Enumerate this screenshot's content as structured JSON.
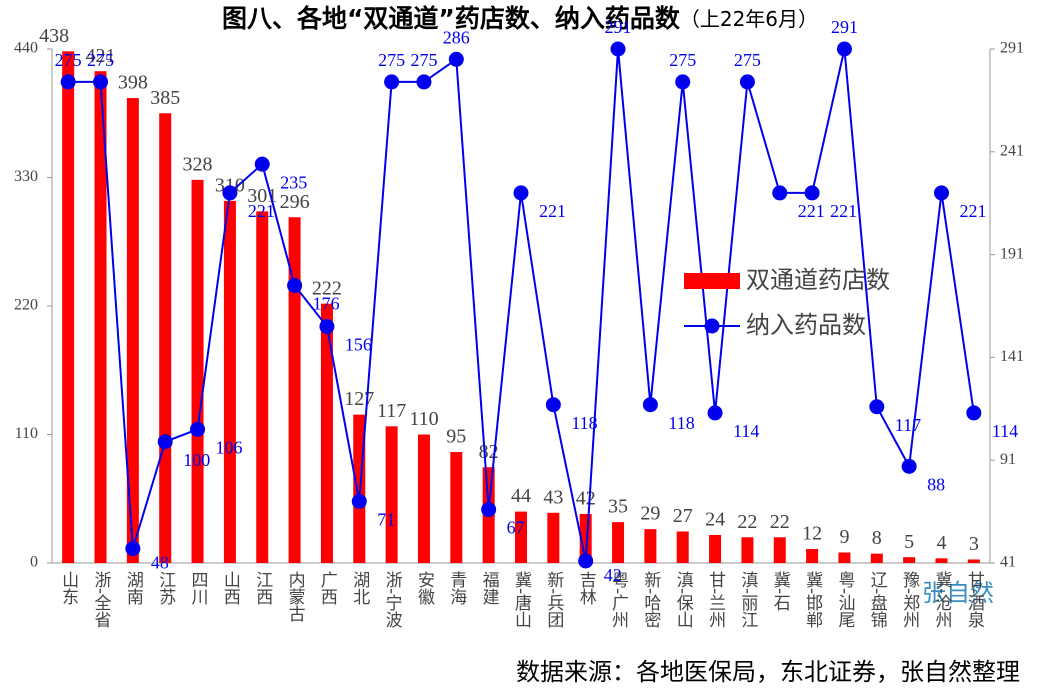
{
  "chart_data": {
    "type": "bar_line",
    "title": "图八、各地“双通道”药店数、纳入药品数",
    "title_note": "（上22年6月）",
    "source": "数据来源：各地医保局，东北证券，张自然整理",
    "watermark": "张自然",
    "categories": [
      "山东",
      "浙-全省",
      "湖南",
      "江苏",
      "四川",
      "山西",
      "江西",
      "内蒙古",
      "广西",
      "湖北",
      "浙-宁波",
      "安徽",
      "青海",
      "福建",
      "冀-唐山",
      "新-兵团",
      "吉林",
      "粤-广州",
      "新-哈密",
      "滇-保山",
      "甘-兰州",
      "滇-丽江",
      "冀-石",
      "冀-邯郸",
      "粤-汕尾",
      "辽-盘锦",
      "豫-郑州",
      "冀-沧州",
      "甘-酒泉"
    ],
    "series": [
      {
        "name": "双通道药店数",
        "type": "bar",
        "color": "#ff0000",
        "values": [
          438,
          421,
          398,
          385,
          328,
          310,
          301,
          296,
          222,
          127,
          117,
          110,
          95,
          82,
          44,
          43,
          42,
          35,
          29,
          27,
          24,
          22,
          22,
          12,
          9,
          8,
          5,
          4,
          3
        ]
      },
      {
        "name": "纳入药品数",
        "type": "line",
        "axis": "y2",
        "color": "#0000ee",
        "values": [
          275,
          275,
          48,
          100,
          106,
          221,
          235,
          176,
          156,
          71,
          275,
          275,
          286,
          67,
          221,
          118,
          42,
          291,
          118,
          275,
          114,
          275,
          221,
          221,
          291,
          117,
          88,
          221,
          114
        ]
      }
    ],
    "ylim": [
      0,
      440
    ],
    "yticks": [
      0,
      110,
      220,
      330,
      440
    ],
    "y2lim": [
      41,
      291
    ],
    "y2ticks": [
      41,
      91,
      141,
      191,
      241,
      291
    ],
    "legend": "right"
  }
}
